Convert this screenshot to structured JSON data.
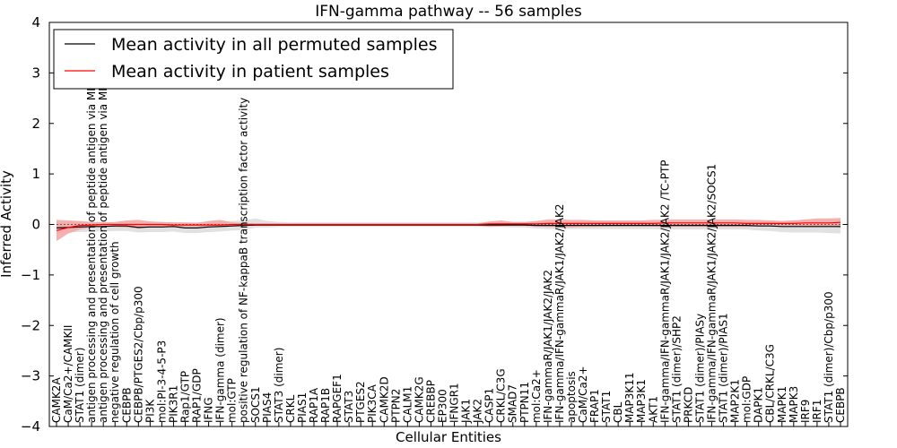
{
  "chart_data": {
    "type": "line",
    "title": "IFN-gamma pathway -- 56 samples",
    "xlabel": "Cellular Entities",
    "ylabel": "Inferred Activity",
    "ylim": [
      -4,
      4
    ],
    "yticks": [
      -4,
      -3,
      -2,
      -1,
      0,
      1,
      2,
      3,
      4
    ],
    "legend_position": "upper-left",
    "categories": [
      "CAMK2A",
      "CaM/Ca2+/CAMKII",
      "STAT1 (dimer)",
      "antigen processing and presentation of peptide antigen via MHC class I",
      "antigen processing and presentation of peptide antigen via MHC class II",
      "negative regulation of cell growth",
      "CEBPB",
      "CEBPB/PTGES2/Cbp/p300",
      "PI3K",
      "mol:PI-3-4-5-P3",
      "PIK3R1",
      "Rap1/GTP",
      "RAP1/GDP",
      "IFNG",
      "IFN-gamma (dimer)",
      "mol:GTP",
      "positive regulation of NF-kappaB transcription factor activity",
      "SOCS1",
      "PIAS4",
      "STAT3 (dimer)",
      "CRKL",
      "PIAS1",
      "RAP1A",
      "RAP1B",
      "RAPGEF1",
      "STAT3",
      "PTGES2",
      "PIK3CA",
      "CAMK2D",
      "PTPN2",
      "CALM1",
      "CAMK2G",
      "CREBBP",
      "EP300",
      "IFNGR1",
      "JAK1",
      "JAK2",
      "CASP1",
      "CRKL/C3G",
      "SMAD7",
      "PTPN11",
      "mol:Ca2+",
      "IFN-gammaR/JAK1/JAK2/JAK2",
      "IFN-gamma/IFN-gammaR/JAK1/JAK2/JAK2",
      "apoptosis",
      "CaM/Ca2+",
      "FRAP1",
      "STAT1",
      "CBL",
      "MAP3K11",
      "MAP3K1",
      "AKT1",
      "IFN-gamma/IFN-gammaR/JAK1/JAK2/JAK2  /TC-PTP",
      "STAT1 (dimer)/SHP2",
      "PRKCD",
      "STAT1 (dimer)/PIASy",
      "IFN-gamma/IFN-gammaR/JAK1/JAK2/JAK2/SOCS1",
      "STAT1 (dimer)/PIAS1",
      "MAP2K1",
      "mol:GDP",
      "DAPK1",
      "CBL/CRKL/C3G",
      "MAPK1",
      "MAPK3",
      "IRF9",
      "IRF1",
      "STAT1 (dimer)/Cbp/p300",
      "CEBPB"
    ],
    "series": [
      {
        "name": "Mean activity in all permuted samples",
        "color": "#000000",
        "band_color": "#d9d9d9",
        "values": [
          -0.07,
          -0.06,
          -0.05,
          -0.04,
          -0.04,
          -0.03,
          -0.03,
          -0.06,
          -0.05,
          -0.05,
          -0.04,
          -0.07,
          -0.07,
          -0.05,
          -0.04,
          -0.03,
          -0.02,
          -0.01,
          -0.01,
          -0.01,
          -0.01,
          -0.01,
          -0.01,
          -0.01,
          -0.01,
          -0.01,
          -0.01,
          -0.01,
          -0.01,
          -0.01,
          -0.01,
          -0.01,
          -0.01,
          -0.01,
          -0.01,
          -0.01,
          -0.01,
          -0.01,
          -0.01,
          -0.01,
          -0.01,
          -0.02,
          -0.02,
          -0.02,
          -0.02,
          -0.02,
          -0.02,
          -0.02,
          -0.02,
          -0.02,
          -0.02,
          -0.02,
          -0.02,
          -0.02,
          -0.02,
          -0.02,
          -0.02,
          -0.02,
          -0.02,
          -0.02,
          -0.03,
          -0.03,
          -0.04,
          -0.04,
          -0.04,
          -0.04,
          -0.04,
          -0.04
        ],
        "lower": [
          -0.17,
          -0.16,
          -0.15,
          -0.14,
          -0.14,
          -0.13,
          -0.13,
          -0.16,
          -0.15,
          -0.15,
          -0.14,
          -0.17,
          -0.17,
          -0.15,
          -0.14,
          -0.12,
          -0.11,
          -0.06,
          -0.06,
          -0.05,
          -0.05,
          -0.05,
          -0.05,
          -0.05,
          -0.05,
          -0.05,
          -0.05,
          -0.05,
          -0.05,
          -0.05,
          -0.05,
          -0.05,
          -0.05,
          -0.05,
          -0.05,
          -0.05,
          -0.05,
          -0.05,
          -0.05,
          -0.06,
          -0.06,
          -0.08,
          -0.09,
          -0.09,
          -0.09,
          -0.09,
          -0.09,
          -0.09,
          -0.09,
          -0.09,
          -0.09,
          -0.09,
          -0.1,
          -0.1,
          -0.1,
          -0.1,
          -0.1,
          -0.1,
          -0.1,
          -0.1,
          -0.12,
          -0.13,
          -0.15,
          -0.16,
          -0.16,
          -0.16,
          -0.17,
          -0.18
        ],
        "upper": [
          0.05,
          0.05,
          0.05,
          0.05,
          0.05,
          0.05,
          0.06,
          0.05,
          0.05,
          0.05,
          0.05,
          0.04,
          0.04,
          0.05,
          0.06,
          0.07,
          0.08,
          0.12,
          0.07,
          0.05,
          0.04,
          0.04,
          0.04,
          0.04,
          0.04,
          0.04,
          0.04,
          0.04,
          0.04,
          0.04,
          0.04,
          0.04,
          0.04,
          0.04,
          0.04,
          0.04,
          0.04,
          0.04,
          0.04,
          0.05,
          0.05,
          0.06,
          0.06,
          0.06,
          0.06,
          0.06,
          0.06,
          0.06,
          0.06,
          0.06,
          0.06,
          0.06,
          0.06,
          0.06,
          0.06,
          0.06,
          0.06,
          0.06,
          0.06,
          0.06,
          0.07,
          0.07,
          0.07,
          0.08,
          0.08,
          0.08,
          0.08,
          0.09
        ]
      },
      {
        "name": "Mean activity in patient samples",
        "color": "#ff0000",
        "band_color": "#f4a3a3",
        "values": [
          -0.12,
          -0.06,
          -0.02,
          -0.01,
          0.0,
          0.0,
          0.0,
          0.0,
          0.0,
          0.0,
          -0.01,
          -0.01,
          -0.01,
          -0.01,
          -0.01,
          0.0,
          0.0,
          0.0,
          0.0,
          0.0,
          0.0,
          0.0,
          0.0,
          0.0,
          0.0,
          0.0,
          0.0,
          0.0,
          0.0,
          0.0,
          0.0,
          0.0,
          0.0,
          0.0,
          0.0,
          0.0,
          0.0,
          0.01,
          0.01,
          0.01,
          0.01,
          0.01,
          0.02,
          0.02,
          0.02,
          0.02,
          0.02,
          0.02,
          0.02,
          0.02,
          0.02,
          0.02,
          0.03,
          0.03,
          0.03,
          0.03,
          0.03,
          0.03,
          0.03,
          0.02,
          0.02,
          0.02,
          0.02,
          0.02,
          0.03,
          0.03,
          0.03,
          0.04
        ],
        "lower": [
          -0.33,
          -0.18,
          -0.1,
          -0.06,
          -0.04,
          -0.05,
          -0.06,
          -0.08,
          -0.05,
          -0.04,
          -0.05,
          -0.04,
          -0.04,
          -0.05,
          -0.05,
          -0.03,
          -0.02,
          -0.02,
          -0.02,
          -0.02,
          -0.02,
          -0.02,
          -0.02,
          -0.02,
          -0.02,
          -0.02,
          -0.02,
          -0.02,
          -0.02,
          -0.02,
          -0.02,
          -0.02,
          -0.02,
          -0.02,
          -0.02,
          -0.02,
          -0.02,
          -0.05,
          -0.04,
          -0.03,
          -0.03,
          -0.04,
          -0.05,
          -0.05,
          -0.06,
          -0.05,
          -0.05,
          -0.04,
          -0.04,
          -0.04,
          -0.04,
          -0.04,
          -0.05,
          -0.05,
          -0.05,
          -0.05,
          -0.05,
          -0.05,
          -0.05,
          -0.05,
          -0.04,
          -0.04,
          -0.04,
          -0.04,
          -0.05,
          -0.05,
          -0.05,
          -0.06
        ],
        "upper": [
          0.09,
          0.08,
          0.07,
          0.05,
          0.04,
          0.05,
          0.08,
          0.09,
          0.06,
          0.05,
          0.04,
          0.04,
          0.03,
          0.07,
          0.09,
          0.04,
          0.03,
          0.02,
          0.02,
          0.02,
          0.02,
          0.02,
          0.02,
          0.02,
          0.02,
          0.02,
          0.02,
          0.02,
          0.02,
          0.02,
          0.02,
          0.02,
          0.02,
          0.02,
          0.02,
          0.02,
          0.02,
          0.06,
          0.08,
          0.05,
          0.05,
          0.07,
          0.1,
          0.1,
          0.09,
          0.09,
          0.08,
          0.08,
          0.08,
          0.08,
          0.08,
          0.09,
          0.09,
          0.1,
          0.1,
          0.1,
          0.1,
          0.1,
          0.1,
          0.09,
          0.09,
          0.08,
          0.07,
          0.08,
          0.1,
          0.12,
          0.12,
          0.13
        ]
      }
    ]
  }
}
